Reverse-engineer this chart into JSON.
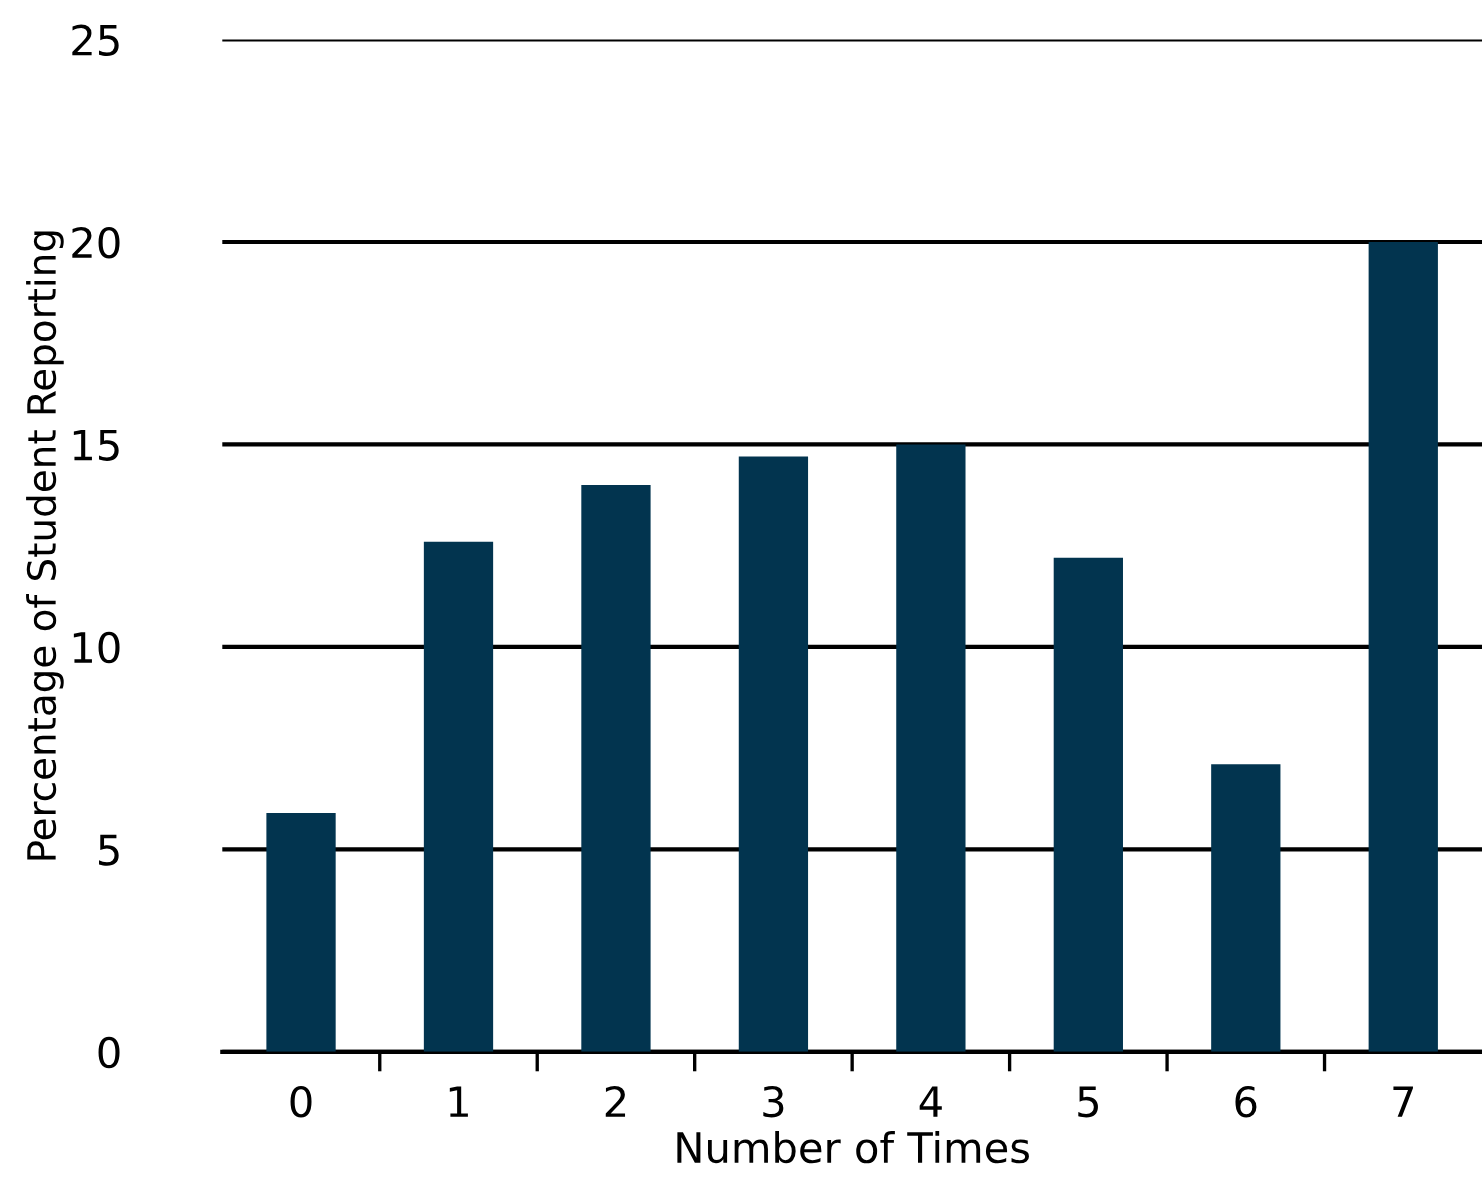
{
  "chart_data": {
    "type": "bar",
    "xlabel": "Number of Times",
    "ylabel": "Percentage of Student Reporting",
    "categories": [
      "0",
      "1",
      "2",
      "3",
      "4",
      "5",
      "6",
      "7"
    ],
    "values": [
      5.9,
      12.6,
      14.0,
      14.7,
      15.0,
      12.2,
      7.1,
      20.0
    ],
    "color": "#02344f",
    "ylim": [
      0,
      25
    ],
    "yticks": [
      0,
      5,
      10,
      15,
      20,
      25
    ],
    "grid": "y",
    "legend": false
  }
}
